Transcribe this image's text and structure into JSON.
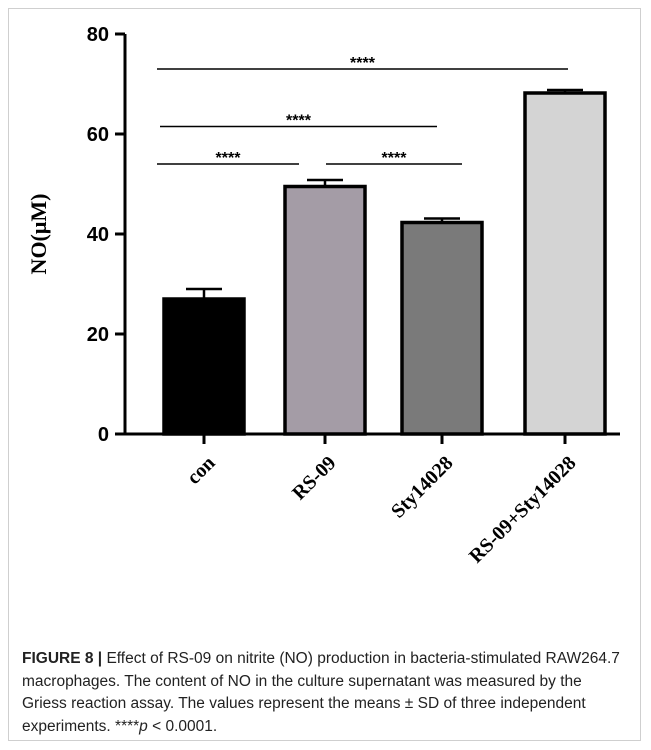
{
  "chart_data": {
    "type": "bar",
    "ylabel": "NO(μM)",
    "xlabel": "",
    "ylim": [
      0,
      80
    ],
    "yticks": [
      0,
      20,
      40,
      60,
      80
    ],
    "categories": [
      "con",
      "RS-09",
      "Sty14028",
      "RS-09+Sty14028"
    ],
    "values": [
      27,
      49.5,
      42.3,
      68.2
    ],
    "errors": [
      2,
      1.3,
      0.8,
      0.6
    ],
    "bar_colors": [
      "#000000",
      "#a49ca6",
      "#7a7a7a",
      "#d4d4d4"
    ],
    "significance": [
      {
        "from": 0,
        "to": 1,
        "y": 54,
        "label": "****"
      },
      {
        "from": 1,
        "to": 2,
        "y": 54,
        "label": "****"
      },
      {
        "from": 0,
        "to": 2,
        "y": 61.5,
        "label": "****"
      },
      {
        "from": 0,
        "to": 3,
        "y": 73,
        "label": "****"
      }
    ]
  },
  "caption": {
    "label": "FIGURE 8 |",
    "text": " Effect of RS-09 on nitrite (NO) production in bacteria-stimulated RAW264.7 macrophages. The content of NO in the culture supernatant was measured by the Griess reaction assay. The values represent the means ± SD of three independent experiments. ****",
    "p_symbol": "p",
    "p_text": " < 0.0001."
  }
}
